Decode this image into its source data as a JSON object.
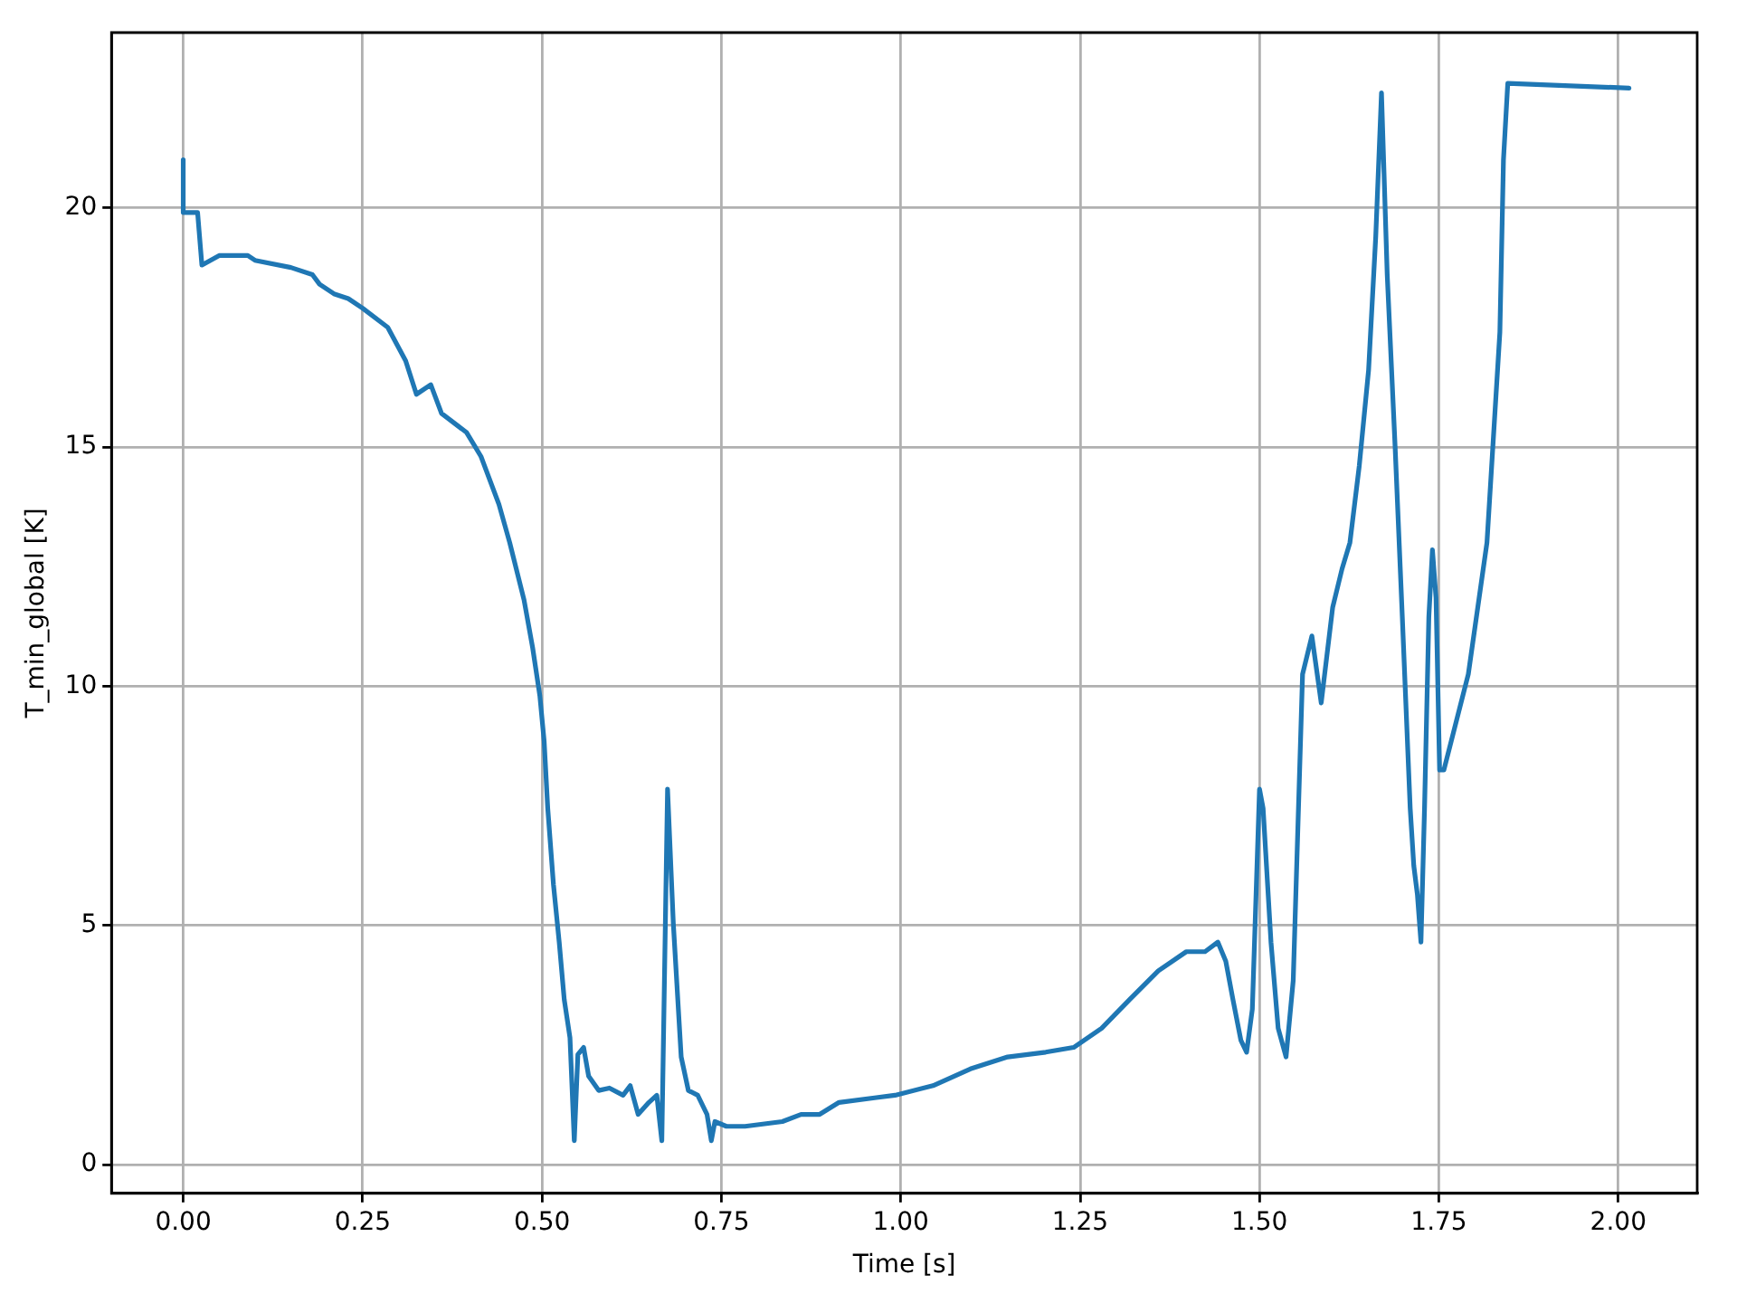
{
  "chart_data": {
    "type": "line",
    "xlabel": "Time [s]",
    "ylabel": "T_min_global [K]",
    "grid": true,
    "legend": false,
    "marker": "none",
    "line_style": "solid",
    "xlim": [
      -0.1,
      2.11
    ],
    "ylim": [
      -0.6,
      23.66
    ],
    "xticks": [
      {
        "value": 0,
        "label": "0.00"
      },
      {
        "value": 0.25,
        "label": "0.25"
      },
      {
        "value": 0.5,
        "label": "0.50"
      },
      {
        "value": 0.75,
        "label": "0.75"
      },
      {
        "value": 1,
        "label": "1.00"
      },
      {
        "value": 1.25,
        "label": "1.25"
      },
      {
        "value": 1.5,
        "label": "1.50"
      },
      {
        "value": 1.75,
        "label": "1.75"
      },
      {
        "value": 2,
        "label": "2.00"
      }
    ],
    "yticks": [
      0,
      5,
      10,
      15,
      20
    ],
    "series": [
      {
        "color": "#1f77b4",
        "x": [
          0,
          0,
          0.016,
          0.02,
          0.026,
          0.05,
          0.09,
          0.1,
          0.15,
          0.18,
          0.19,
          0.21,
          0.23,
          0.25,
          0.285,
          0.31,
          0.325,
          0.345,
          0.36,
          0.395,
          0.415,
          0.44,
          0.455,
          0.475,
          0.487,
          0.497,
          0.503,
          0.508,
          0.516,
          0.524,
          0.531,
          0.539,
          0.545,
          0.55,
          0.558,
          0.565,
          0.579,
          0.594,
          0.613,
          0.623,
          0.634,
          0.649,
          0.66,
          0.667,
          0.675,
          0.683,
          0.694,
          0.704,
          0.717,
          0.73,
          0.736,
          0.741,
          0.757,
          0.783,
          0.835,
          0.861,
          0.887,
          0.914,
          0.966,
          0.992,
          1.045,
          1.097,
          1.149,
          1.202,
          1.241,
          1.28,
          1.319,
          1.359,
          1.398,
          1.424,
          1.442,
          1.453,
          1.463,
          1.474,
          1.482,
          1.49,
          1.5,
          1.505,
          1.516,
          1.526,
          1.537,
          1.547,
          1.56,
          1.573,
          1.586,
          1.602,
          1.615,
          1.626,
          1.639,
          1.652,
          1.662,
          1.67,
          1.678,
          1.689,
          1.699,
          1.71,
          1.715,
          1.72,
          1.725,
          1.73,
          1.736,
          1.741,
          1.746,
          1.751,
          1.757,
          1.791,
          1.817,
          1.835,
          1.84,
          1.846,
          2.015
        ],
        "values": [
          21.0,
          19.9,
          19.9,
          19.9,
          18.8,
          19.0,
          19.0,
          18.9,
          18.75,
          18.6,
          18.4,
          18.2,
          18.1,
          17.9,
          17.5,
          16.8,
          16.1,
          16.3,
          15.7,
          15.3,
          14.8,
          13.8,
          13.0,
          11.8,
          10.8,
          9.8,
          8.85,
          7.45,
          5.85,
          4.65,
          3.45,
          2.65,
          0.5,
          2.3,
          2.45,
          1.85,
          1.55,
          1.6,
          1.45,
          1.65,
          1.05,
          1.3,
          1.45,
          0.5,
          7.85,
          5.05,
          2.25,
          1.55,
          1.45,
          1.05,
          0.5,
          0.9,
          0.8,
          0.8,
          0.9,
          1.05,
          1.05,
          1.3,
          1.4,
          1.45,
          1.65,
          2.0,
          2.25,
          2.35,
          2.45,
          2.85,
          3.45,
          4.05,
          4.45,
          4.45,
          4.65,
          4.25,
          3.45,
          2.6,
          2.35,
          3.25,
          7.85,
          7.45,
          4.65,
          2.85,
          2.25,
          3.85,
          10.25,
          11.05,
          9.65,
          11.65,
          12.45,
          13.0,
          14.6,
          16.6,
          19.4,
          22.4,
          18.6,
          15.0,
          11.45,
          7.45,
          6.25,
          5.65,
          4.65,
          7.45,
          11.45,
          12.85,
          11.85,
          8.25,
          8.25,
          10.25,
          13.0,
          17.4,
          21.0,
          22.6,
          22.5
        ]
      }
    ]
  }
}
